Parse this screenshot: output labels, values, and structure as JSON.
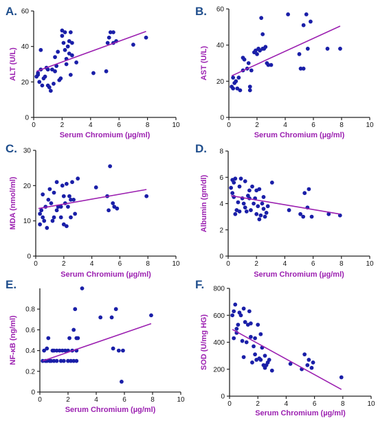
{
  "colors": {
    "point": "#1a1fa8",
    "line": "#9b1fb0",
    "label": "#9b1fb0",
    "panel_letter": "#1f4e8c",
    "axis": "#222222"
  },
  "chart_data": [
    {
      "id": "A",
      "panel": "A.",
      "type": "scatter",
      "xlabel": "Serum Chromium (µg/ml)",
      "ylabel": "ALT (U/L)",
      "xlim": [
        0,
        10
      ],
      "ylim": [
        0,
        60
      ],
      "xticks": [
        0,
        2,
        4,
        6,
        8,
        10
      ],
      "yticks": [
        0,
        20,
        40,
        60
      ],
      "fit": [
        [
          0.2,
          26
        ],
        [
          7.9,
          48.5
        ]
      ],
      "points": [
        [
          0.2,
          23
        ],
        [
          0.3,
          24
        ],
        [
          0.3,
          25
        ],
        [
          0.4,
          20
        ],
        [
          0.5,
          38
        ],
        [
          0.5,
          27
        ],
        [
          0.6,
          18
        ],
        [
          0.7,
          22
        ],
        [
          0.8,
          23
        ],
        [
          0.9,
          28
        ],
        [
          1.0,
          18
        ],
        [
          1.0,
          27
        ],
        [
          1.1,
          17
        ],
        [
          1.2,
          15
        ],
        [
          1.3,
          27
        ],
        [
          1.4,
          19
        ],
        [
          1.5,
          26
        ],
        [
          1.5,
          34
        ],
        [
          1.6,
          29
        ],
        [
          1.7,
          37
        ],
        [
          1.8,
          21
        ],
        [
          1.9,
          22
        ],
        [
          2.0,
          49
        ],
        [
          2.0,
          46
        ],
        [
          2.1,
          42
        ],
        [
          2.2,
          48
        ],
        [
          2.2,
          38
        ],
        [
          2.3,
          33
        ],
        [
          2.3,
          30
        ],
        [
          2.4,
          40
        ],
        [
          2.5,
          43
        ],
        [
          2.5,
          36
        ],
        [
          2.6,
          48
        ],
        [
          2.6,
          24
        ],
        [
          2.7,
          42
        ],
        [
          2.7,
          35
        ],
        [
          3.0,
          31
        ],
        [
          4.2,
          25
        ],
        [
          5.1,
          26
        ],
        [
          5.2,
          42
        ],
        [
          5.3,
          45
        ],
        [
          5.4,
          48
        ],
        [
          5.6,
          48
        ],
        [
          5.6,
          42
        ],
        [
          5.8,
          43
        ],
        [
          7.0,
          41
        ],
        [
          7.9,
          45
        ]
      ]
    },
    {
      "id": "B",
      "panel": "B.",
      "type": "scatter",
      "xlabel": "Serum Chromium (µg/ml)",
      "ylabel": "AST (U/L)",
      "xlim": [
        0,
        10
      ],
      "ylim": [
        0,
        60
      ],
      "xticks": [
        0,
        2,
        4,
        6,
        8,
        10
      ],
      "yticks": [
        0,
        20,
        40,
        60
      ],
      "fit": [
        [
          0.2,
          23
        ],
        [
          7.9,
          50.5
        ]
      ],
      "points": [
        [
          0.2,
          17
        ],
        [
          0.3,
          22
        ],
        [
          0.3,
          16
        ],
        [
          0.4,
          19
        ],
        [
          0.5,
          20
        ],
        [
          0.6,
          16
        ],
        [
          0.7,
          22
        ],
        [
          0.8,
          15
        ],
        [
          1.0,
          26
        ],
        [
          1.0,
          33
        ],
        [
          1.1,
          32
        ],
        [
          1.3,
          27
        ],
        [
          1.4,
          30
        ],
        [
          1.5,
          17
        ],
        [
          1.5,
          15
        ],
        [
          1.6,
          26
        ],
        [
          1.8,
          36
        ],
        [
          1.9,
          37
        ],
        [
          2.0,
          35
        ],
        [
          2.1,
          38
        ],
        [
          2.2,
          37
        ],
        [
          2.3,
          55
        ],
        [
          2.4,
          46
        ],
        [
          2.4,
          38
        ],
        [
          2.5,
          38
        ],
        [
          2.6,
          39
        ],
        [
          2.7,
          30
        ],
        [
          2.8,
          29
        ],
        [
          3.0,
          29
        ],
        [
          4.2,
          57
        ],
        [
          5.0,
          35
        ],
        [
          5.1,
          27
        ],
        [
          5.3,
          27
        ],
        [
          5.3,
          51
        ],
        [
          5.5,
          57
        ],
        [
          5.6,
          38
        ],
        [
          5.8,
          53
        ],
        [
          7.0,
          38
        ],
        [
          7.9,
          38
        ]
      ]
    },
    {
      "id": "C",
      "panel": "C.",
      "type": "scatter",
      "xlabel": "Serum Chromium (µg/ml)",
      "ylabel": "MDA (nmol/ml)",
      "xlim": [
        0,
        10
      ],
      "ylim": [
        0,
        30
      ],
      "xticks": [
        0,
        2,
        4,
        6,
        8,
        10
      ],
      "yticks": [
        0,
        10,
        20,
        30
      ],
      "fit": [
        [
          0.2,
          13.5
        ],
        [
          7.9,
          18.9
        ]
      ],
      "points": [
        [
          0.3,
          12
        ],
        [
          0.3,
          9
        ],
        [
          0.4,
          13
        ],
        [
          0.5,
          11
        ],
        [
          0.5,
          17.5
        ],
        [
          0.6,
          10
        ],
        [
          0.7,
          14
        ],
        [
          0.8,
          8
        ],
        [
          0.9,
          16
        ],
        [
          1.0,
          19
        ],
        [
          1.1,
          15
        ],
        [
          1.2,
          10
        ],
        [
          1.3,
          18
        ],
        [
          1.3,
          11
        ],
        [
          1.5,
          21
        ],
        [
          1.5,
          13
        ],
        [
          1.6,
          14
        ],
        [
          1.8,
          14
        ],
        [
          1.8,
          11
        ],
        [
          1.9,
          20
        ],
        [
          2.0,
          17
        ],
        [
          2.0,
          9
        ],
        [
          2.1,
          15
        ],
        [
          2.2,
          20.5
        ],
        [
          2.2,
          8.5
        ],
        [
          2.3,
          14
        ],
        [
          2.4,
          17
        ],
        [
          2.5,
          16
        ],
        [
          2.5,
          11
        ],
        [
          2.6,
          21
        ],
        [
          2.7,
          16
        ],
        [
          2.8,
          12
        ],
        [
          3.0,
          22
        ],
        [
          4.3,
          19.5
        ],
        [
          5.1,
          17
        ],
        [
          5.2,
          13
        ],
        [
          5.3,
          25.5
        ],
        [
          5.5,
          15
        ],
        [
          5.6,
          14
        ],
        [
          5.8,
          13.5
        ],
        [
          7.9,
          17
        ]
      ]
    },
    {
      "id": "D",
      "panel": "D.",
      "type": "scatter",
      "xlabel": "Serum Chromium (µg/ml)",
      "ylabel": "Albumin (gm/dl)",
      "xlim": [
        0,
        10
      ],
      "ylim": [
        0,
        8
      ],
      "xticks": [
        0,
        2,
        4,
        6,
        8,
        10
      ],
      "yticks": [
        0,
        2,
        4,
        6,
        8
      ],
      "fit": [
        [
          0.2,
          4.6
        ],
        [
          7.9,
          3.2
        ]
      ],
      "points": [
        [
          0.2,
          5.2
        ],
        [
          0.3,
          4.8
        ],
        [
          0.3,
          5.8
        ],
        [
          0.4,
          4.5
        ],
        [
          0.4,
          5.6
        ],
        [
          0.5,
          3.2
        ],
        [
          0.5,
          5.9
        ],
        [
          0.6,
          3.5
        ],
        [
          0.7,
          4.1
        ],
        [
          0.8,
          5.3
        ],
        [
          0.8,
          3.4
        ],
        [
          0.9,
          5.9
        ],
        [
          1.0,
          4.4
        ],
        [
          1.1,
          4.0
        ],
        [
          1.2,
          5.7
        ],
        [
          1.2,
          3.7
        ],
        [
          1.3,
          3.4
        ],
        [
          1.4,
          4.6
        ],
        [
          1.5,
          5.0
        ],
        [
          1.5,
          4.4
        ],
        [
          1.6,
          3.5
        ],
        [
          1.7,
          5.3
        ],
        [
          1.8,
          4.0
        ],
        [
          1.9,
          4.4
        ],
        [
          2.0,
          5.0
        ],
        [
          2.0,
          3.2
        ],
        [
          2.1,
          3.8
        ],
        [
          2.2,
          2.8
        ],
        [
          2.2,
          5.1
        ],
        [
          2.3,
          3.1
        ],
        [
          2.4,
          4.0
        ],
        [
          2.5,
          3.6
        ],
        [
          2.5,
          4.5
        ],
        [
          2.6,
          3.0
        ],
        [
          2.7,
          3.3
        ],
        [
          2.8,
          3.8
        ],
        [
          3.1,
          5.6
        ],
        [
          4.3,
          3.5
        ],
        [
          5.1,
          3.2
        ],
        [
          5.3,
          3.0
        ],
        [
          5.4,
          4.8
        ],
        [
          5.6,
          3.7
        ],
        [
          5.7,
          5.1
        ],
        [
          5.9,
          3.0
        ],
        [
          7.1,
          3.2
        ],
        [
          7.9,
          3.1
        ]
      ]
    },
    {
      "id": "E",
      "panel": "E.",
      "type": "scatter",
      "xlabel": "Serum Chromium (µg/ml)",
      "ylabel": "NF-κB (ng/ml)",
      "xlim": [
        0,
        10
      ],
      "ylim": [
        0,
        1.0
      ],
      "xticks": [
        0,
        2,
        4,
        6,
        8,
        10
      ],
      "yticks": [
        0.0,
        0.2,
        0.4,
        0.6,
        0.8
      ],
      "fit": [
        [
          0.2,
          0.3
        ],
        [
          7.9,
          0.66
        ]
      ],
      "points": [
        [
          0.2,
          0.3
        ],
        [
          0.3,
          0.4
        ],
        [
          0.4,
          0.3
        ],
        [
          0.5,
          0.42
        ],
        [
          0.5,
          0.3
        ],
        [
          0.6,
          0.52
        ],
        [
          0.7,
          0.3
        ],
        [
          0.8,
          0.3
        ],
        [
          0.9,
          0.4
        ],
        [
          1.0,
          0.3
        ],
        [
          1.0,
          0.4
        ],
        [
          1.2,
          0.3
        ],
        [
          1.2,
          0.4
        ],
        [
          1.4,
          0.4
        ],
        [
          1.5,
          0.3
        ],
        [
          1.6,
          0.4
        ],
        [
          1.7,
          0.3
        ],
        [
          1.8,
          0.4
        ],
        [
          2.0,
          0.3
        ],
        [
          2.0,
          0.4
        ],
        [
          2.1,
          0.52
        ],
        [
          2.2,
          0.3
        ],
        [
          2.3,
          0.4
        ],
        [
          2.4,
          0.3
        ],
        [
          2.4,
          0.6
        ],
        [
          2.5,
          0.8
        ],
        [
          2.6,
          0.4
        ],
        [
          2.6,
          0.52
        ],
        [
          2.6,
          0.3
        ],
        [
          2.7,
          0.52
        ],
        [
          3.0,
          1.0
        ],
        [
          4.3,
          0.72
        ],
        [
          5.1,
          0.72
        ],
        [
          5.2,
          0.42
        ],
        [
          5.4,
          0.8
        ],
        [
          5.6,
          0.4
        ],
        [
          5.8,
          0.1
        ],
        [
          5.9,
          0.4
        ],
        [
          7.9,
          0.74
        ]
      ]
    },
    {
      "id": "F",
      "panel": "F.",
      "type": "scatter",
      "xlabel": "Serum Chromium (µg/ml)",
      "ylabel": "SOD (U/mg HG)",
      "xlim": [
        0,
        10
      ],
      "ylim": [
        0,
        800
      ],
      "xticks": [
        0,
        2,
        4,
        6,
        8,
        10
      ],
      "yticks": [
        0,
        200,
        400,
        600,
        800
      ],
      "fit": [
        [
          0.2,
          495
        ],
        [
          7.9,
          50
        ]
      ],
      "points": [
        [
          0.2,
          600
        ],
        [
          0.3,
          430
        ],
        [
          0.3,
          630
        ],
        [
          0.4,
          680
        ],
        [
          0.5,
          470
        ],
        [
          0.5,
          500
        ],
        [
          0.6,
          530
        ],
        [
          0.7,
          620
        ],
        [
          0.8,
          600
        ],
        [
          0.9,
          410
        ],
        [
          1.0,
          650
        ],
        [
          1.0,
          290
        ],
        [
          1.1,
          550
        ],
        [
          1.2,
          400
        ],
        [
          1.3,
          530
        ],
        [
          1.4,
          630
        ],
        [
          1.5,
          440
        ],
        [
          1.5,
          540
        ],
        [
          1.6,
          250
        ],
        [
          1.7,
          370
        ],
        [
          1.8,
          430
        ],
        [
          1.8,
          310
        ],
        [
          1.9,
          270
        ],
        [
          2.0,
          530
        ],
        [
          2.1,
          280
        ],
        [
          2.2,
          270
        ],
        [
          2.2,
          460
        ],
        [
          2.3,
          360
        ],
        [
          2.4,
          230
        ],
        [
          2.5,
          210
        ],
        [
          2.5,
          300
        ],
        [
          2.6,
          230
        ],
        [
          2.7,
          250
        ],
        [
          2.8,
          270
        ],
        [
          3.0,
          190
        ],
        [
          4.3,
          240
        ],
        [
          5.1,
          200
        ],
        [
          5.3,
          310
        ],
        [
          5.5,
          230
        ],
        [
          5.6,
          270
        ],
        [
          5.8,
          210
        ],
        [
          5.9,
          250
        ],
        [
          7.9,
          140
        ]
      ]
    }
  ]
}
